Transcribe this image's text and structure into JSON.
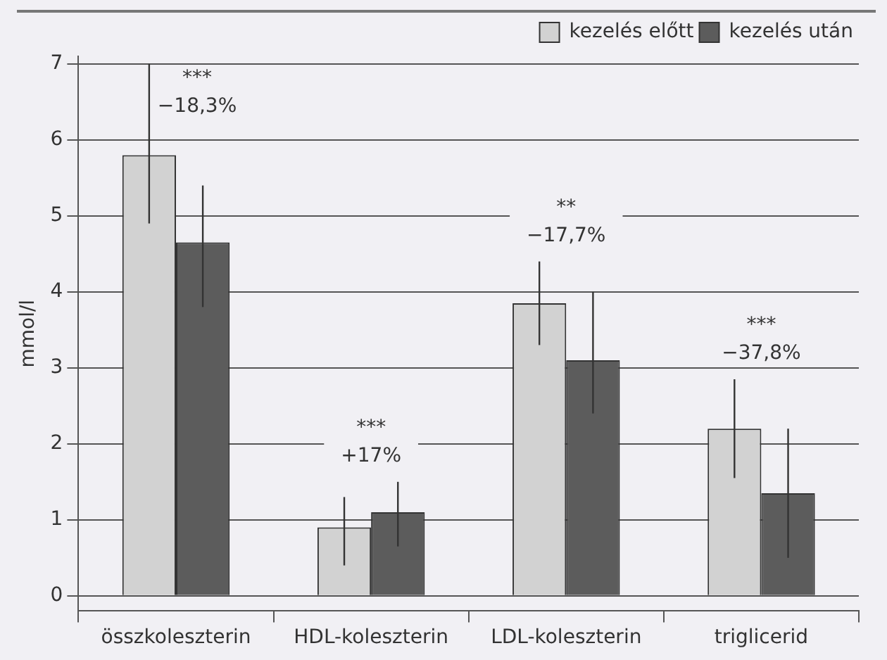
{
  "chart_data": {
    "type": "bar",
    "ylabel": "mmol/l",
    "categories": [
      "összkoleszterin",
      "HDL-koleszterin",
      "LDL-koleszterin",
      "triglicerid"
    ],
    "series": [
      {
        "name": "kezelés előtt",
        "color": "#d2d2d2",
        "values": [
          5.8,
          0.9,
          3.85,
          2.2
        ],
        "errors": [
          [
            4.9,
            7.0
          ],
          [
            0.4,
            1.3
          ],
          [
            3.3,
            4.4
          ],
          [
            1.55,
            2.85
          ]
        ]
      },
      {
        "name": "kezelés után",
        "color": "#5c5c5c",
        "values": [
          4.65,
          1.1,
          3.1,
          1.35
        ],
        "errors": [
          [
            3.8,
            5.4
          ],
          [
            0.65,
            1.5
          ],
          [
            2.4,
            4.0
          ],
          [
            0.5,
            2.2
          ]
        ]
      }
    ],
    "ylim": [
      -0.2,
      7.1
    ],
    "yticks": [
      0,
      1,
      2,
      3,
      4,
      5,
      6,
      7
    ],
    "grid": "y",
    "legend": "top right",
    "annotations": [
      "***",
      "−18,3%",
      "***",
      "+17%",
      "**",
      "−17,7%",
      "***",
      "−37,8%"
    ]
  }
}
